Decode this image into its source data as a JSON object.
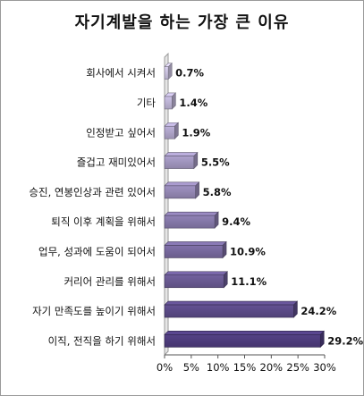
{
  "chart_data": {
    "type": "bar",
    "orientation": "horizontal",
    "title": "자기계발을 하는 가장 큰 이유",
    "categories": [
      "회사에서 시켜서",
      "기타",
      "인정받고 싶어서",
      "즐겁고 재미있어서",
      "승진, 연봉인상과 관련 있어서",
      "퇴직 이후 계획을 위해서",
      "업무, 성과에 도움이 되어서",
      "커리어 관리를 위해서",
      "자기 만족도를 높이기 위해서",
      "이직, 전직을 하기 위해서"
    ],
    "values": [
      0.7,
      1.4,
      1.9,
      5.5,
      5.8,
      9.4,
      10.9,
      11.1,
      24.2,
      29.2
    ],
    "value_labels": [
      "0.7%",
      "1.4%",
      "1.9%",
      "5.5%",
      "5.8%",
      "9.4%",
      "10.9%",
      "11.1%",
      "24.2%",
      "29.2%"
    ],
    "x_ticks": [
      "0%",
      "5%",
      "10%",
      "15%",
      "20%",
      "25%",
      "30%"
    ],
    "xlim": [
      0,
      30
    ],
    "grid": false,
    "legend": "none",
    "colors": {
      "light": "#c4bcd8",
      "dark": "#4b3a78"
    }
  }
}
